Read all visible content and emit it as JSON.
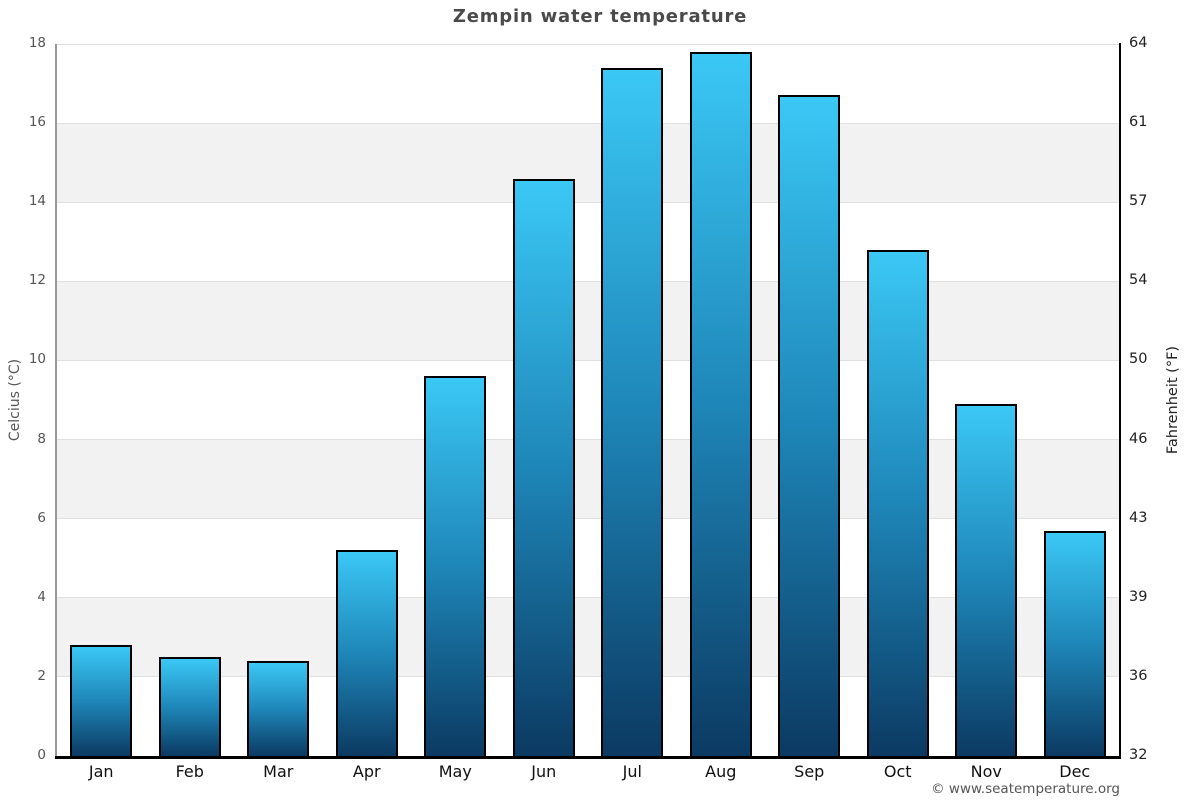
{
  "footer": {
    "copyright": "© www.seatemperature.org"
  },
  "chart_data": {
    "type": "bar",
    "title": "Zempin water temperature",
    "categories": [
      "Jan",
      "Feb",
      "Mar",
      "Apr",
      "May",
      "Jun",
      "Jul",
      "Aug",
      "Sep",
      "Oct",
      "Nov",
      "Dec"
    ],
    "values": [
      2.8,
      2.5,
      2.4,
      5.2,
      9.6,
      14.6,
      17.4,
      17.8,
      16.7,
      12.8,
      8.9,
      5.7
    ],
    "xlabel": "",
    "ylabel_left": "Celcius (°C)",
    "ylabel_right": "Fahrenheit (°F)",
    "ylim": [
      0,
      18
    ],
    "y_left_ticks": [
      0,
      2,
      4,
      6,
      8,
      10,
      12,
      14,
      16,
      18
    ],
    "y_right_ticks": [
      32,
      36,
      39,
      43,
      46,
      50,
      54,
      57,
      61,
      64
    ],
    "grid": "alternating horizontal bands every 2 °C",
    "legend": "none",
    "colors": {
      "bar_top": "#3bc8f5",
      "bar_mid": "#1e86b8",
      "bar_bottom": "#0b3a62",
      "bar_border": "#000000",
      "band": "#f2f2f2",
      "gridline": "#e0e0e0",
      "axis_left": "#999999",
      "axis_right": "#000000",
      "axis_bottom": "#000000",
      "title_text": "#4a4a4a",
      "tick_text_left": "#555555",
      "tick_text_right": "#222222",
      "month_text": "#111111",
      "footer_text": "#555555"
    }
  }
}
